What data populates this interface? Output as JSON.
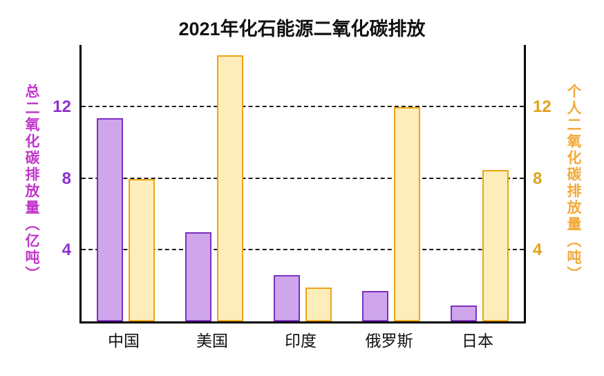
{
  "chart_data": {
    "type": "bar",
    "title": "2021年化石能源二氧化碳排放",
    "categories": [
      "中国",
      "美国",
      "印度",
      "俄罗斯",
      "日本"
    ],
    "series": [
      {
        "name": "总二氧化碳排放量（亿吨）",
        "axis": "left",
        "values": [
          11.4,
          5.0,
          2.6,
          1.7,
          0.9
        ],
        "fill": "#cfa6ec",
        "border": "#7d2fc1"
      },
      {
        "name": "个人二氧化碳排放量（吨）",
        "axis": "right",
        "values": [
          8.0,
          14.9,
          1.9,
          12.0,
          8.5
        ],
        "fill": "#fdedba",
        "border": "#eda414"
      }
    ],
    "left_axis": {
      "label": "总二氧化碳排放量（亿吨）",
      "ticks": [
        4,
        8,
        12
      ],
      "tick_color": "#8d2fd0",
      "label_color": "#c136cb"
    },
    "right_axis": {
      "label": "个人二氧化碳排放量（吨）",
      "ticks": [
        4,
        8,
        12
      ],
      "tick_color": "#dfa31c",
      "label_color": "#f2a93b"
    },
    "ylim": [
      0,
      15.5
    ],
    "grid": "dashed-horizontal-at-ticks",
    "legend": "none",
    "background": "#ffffff"
  }
}
